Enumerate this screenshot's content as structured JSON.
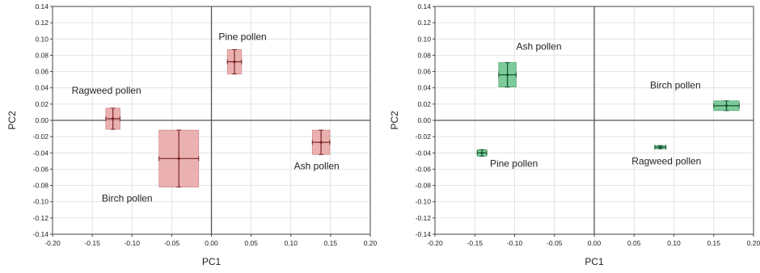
{
  "chart_data": [
    {
      "type": "scatter",
      "title": "",
      "xlabel": "PC1",
      "ylabel": "PC2",
      "xlim": [
        -0.2,
        0.2
      ],
      "ylim": [
        -0.14,
        0.14
      ],
      "x_ticks": [
        "-0.20",
        "-0.15",
        "-0.10",
        "-0.05",
        "0.00",
        "0.05",
        "0.10",
        "0.15",
        "0.20"
      ],
      "y_ticks": [
        "0.14",
        "0.12",
        "0.10",
        "0.08",
        "0.06",
        "0.04",
        "0.02",
        "0.00",
        "-0.02",
        "-0.04",
        "-0.06",
        "-0.08",
        "-0.10",
        "-0.12",
        "-0.14"
      ],
      "grid": true,
      "box_color": "#e8a3a3",
      "box_border": "#c97c7c",
      "marker_color": "#7a2222",
      "points": [
        {
          "name": "Pine pollen",
          "x": 0.029,
          "y": 0.072,
          "x_err": 0.009,
          "y_err": 0.015,
          "label_x": 0.009,
          "label_y": 0.099
        },
        {
          "name": "Ragweed pollen",
          "x": -0.124,
          "y": 0.002,
          "x_err": 0.009,
          "y_err": 0.013,
          "label_x": -0.176,
          "label_y": 0.033
        },
        {
          "name": "Birch pollen",
          "x": -0.041,
          "y": -0.047,
          "x_err": 0.025,
          "y_err": 0.035,
          "label_x": -0.138,
          "label_y": -0.1
        },
        {
          "name": "Ash pollen",
          "x": 0.138,
          "y": -0.027,
          "x_err": 0.011,
          "y_err": 0.015,
          "label_x": 0.104,
          "label_y": -0.06
        }
      ]
    },
    {
      "type": "scatter",
      "title": "",
      "xlabel": "PC1",
      "ylabel": "PC2",
      "xlim": [
        -0.2,
        0.2
      ],
      "ylim": [
        -0.14,
        0.14
      ],
      "x_ticks": [
        "-0.20",
        "-0.15",
        "-0.10",
        "-0.05",
        "0.00",
        "0.05",
        "0.10",
        "0.15",
        "0.20"
      ],
      "y_ticks": [
        "0.14",
        "0.12",
        "0.10",
        "0.08",
        "0.06",
        "0.04",
        "0.02",
        "0.00",
        "-0.02",
        "-0.04",
        "-0.06",
        "-0.08",
        "-0.10",
        "-0.12",
        "-0.14"
      ],
      "grid": true,
      "box_color": "#66c28a",
      "box_border": "#3e9a62",
      "marker_color": "#14502c",
      "points": [
        {
          "name": "Ash pollen",
          "x": -0.109,
          "y": 0.056,
          "x_err": 0.011,
          "y_err": 0.015,
          "label_x": -0.098,
          "label_y": 0.087
        },
        {
          "name": "Birch pollen",
          "x": 0.166,
          "y": 0.018,
          "x_err": 0.016,
          "y_err": 0.006,
          "label_x": 0.07,
          "label_y": 0.039
        },
        {
          "name": "Pine pollen",
          "x": -0.141,
          "y": -0.04,
          "x_err": 0.006,
          "y_err": 0.004,
          "label_x": -0.131,
          "label_y": -0.057
        },
        {
          "name": "Ragweed pollen",
          "x": 0.083,
          "y": -0.033,
          "x_err": 0.007,
          "y_err": 0.002,
          "label_x": 0.047,
          "label_y": -0.054
        }
      ]
    }
  ]
}
